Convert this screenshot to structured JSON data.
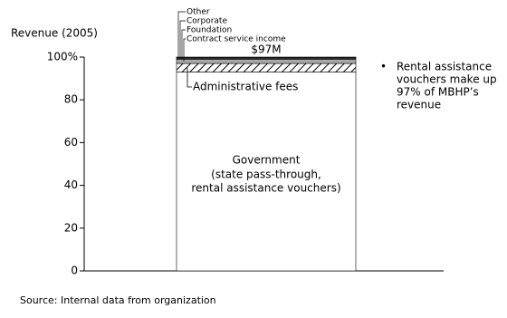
{
  "chart_data": {
    "type": "stacked_bar",
    "y_label": "Revenue (2005)",
    "ylim": [
      0,
      100
    ],
    "yticks": [
      0,
      20,
      40,
      60,
      80,
      {
        "value": 100,
        "label": "100%"
      }
    ],
    "series": [
      {
        "name": "Government",
        "detail": [
          "(state pass-through,",
          "rental assistance vouchers)"
        ],
        "color": "#ffffff",
        "values": [
          93
        ]
      },
      {
        "name": "Administrative fees",
        "color": "hatch",
        "values": [
          4
        ]
      },
      {
        "name": "Contract service income",
        "color": "#a6a6a6",
        "values": [
          2
        ]
      },
      {
        "name": "Foundation",
        "color": "#a6a6a6",
        "values": [
          0.4
        ]
      },
      {
        "name": "Corporate",
        "color": "#a6a6a6",
        "values": [
          0.3
        ]
      },
      {
        "name": "Other",
        "color": "#a6a6a6",
        "values": [
          0.3
        ]
      }
    ],
    "total_value": 97,
    "total_label": "$97M",
    "annotation": [
      "Rental assistance",
      "vouchers make up",
      "97% of MBHP’s",
      "revenue"
    ],
    "source": "Source: Internal data from organization"
  }
}
